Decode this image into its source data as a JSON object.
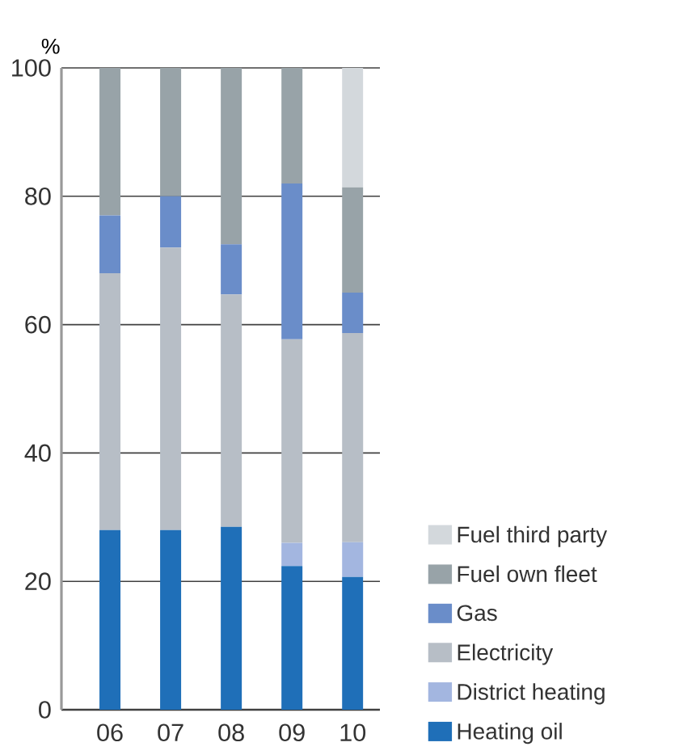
{
  "chart_data": {
    "type": "bar",
    "stacked": true,
    "ylabel": "%",
    "categories": [
      "06",
      "07",
      "08",
      "09",
      "10"
    ],
    "series": [
      {
        "name": "Heating oil",
        "color": "#1f6fb8",
        "values": [
          28,
          28,
          28.5,
          22.4,
          20.7
        ]
      },
      {
        "name": "District heating",
        "color": "#a3b6e0",
        "values": [
          0,
          0,
          0,
          3.6,
          5.4
        ]
      },
      {
        "name": "Electricity",
        "color": "#b7bec6",
        "values": [
          40,
          44,
          36.2,
          31.7,
          32.6
        ]
      },
      {
        "name": "Gas",
        "color": "#6a8dc9",
        "values": [
          9,
          8,
          7.8,
          24.3,
          6.3
        ]
      },
      {
        "name": "Fuel own fleet",
        "color": "#98a3a8",
        "values": [
          23,
          20,
          27.5,
          18,
          16.4
        ]
      },
      {
        "name": "Fuel third party",
        "color": "#d3d8dc",
        "values": [
          0,
          0,
          0,
          0,
          18.6
        ]
      }
    ],
    "ylim": [
      0,
      100
    ],
    "yticks": [
      0,
      20,
      40,
      60,
      80,
      100
    ],
    "grid": "y",
    "legend": "bottom right"
  }
}
